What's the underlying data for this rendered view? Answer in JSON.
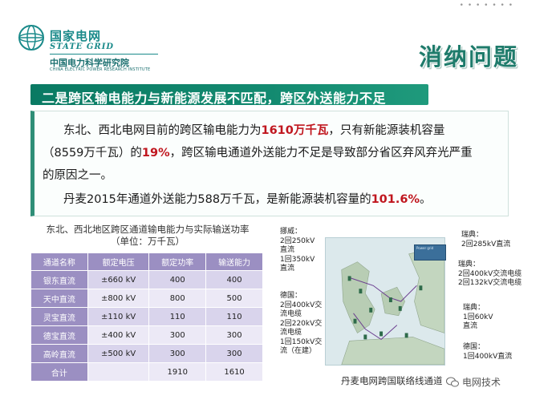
{
  "header": {
    "dots": "• • • • • • •",
    "logo_cn": "国家电网",
    "logo_en": "STATE GRID",
    "institute_cn": "中国电力科学研究院",
    "institute_en": "CHINA ELECTRIC POWER RESEARCH INSTITUTE",
    "section_title": "消纳问题",
    "accent_color": "#1e7b6b"
  },
  "banner": {
    "text": "二是跨区输电能力与新能源发展不匹配，跨区外送能力不足"
  },
  "body": {
    "line1_a": "东北、西北电网目前的跨区输电能力为",
    "line1_hl": "1610万千瓦",
    "line1_b": "，只有新能源装机容量",
    "line2_a": "（8559万千瓦）的",
    "line2_hl": "19%",
    "line2_b": "，跨区输电通道外送能力不足是导致部分省区弃风弃光严重",
    "line3": "的原因之一。",
    "line4_a": "丹麦2015年通道外送能力588万千瓦，是新能源装机容量的",
    "line4_hl": "101.6%",
    "line4_b": "。",
    "highlight_color": "#c0161e"
  },
  "table": {
    "title_line1": "东北、西北地区跨区通道输电能力与实际输送功率",
    "title_line2": "（单位：万千瓦）",
    "headers": [
      "通道名称",
      "额定电压",
      "额定功率",
      "输送能力"
    ],
    "rows": [
      [
        "银东直流",
        "±660 kV",
        "400",
        "400"
      ],
      [
        "天中直流",
        "±800 kV",
        "800",
        "500"
      ],
      [
        "灵宝直流",
        "±110 kV",
        "110",
        "110"
      ],
      [
        "德宝直流",
        "±400 kV",
        "300",
        "300"
      ],
      [
        "高岭直流",
        "±500 kV",
        "300",
        "300"
      ],
      [
        "合计",
        "",
        "1910",
        "1610"
      ]
    ]
  },
  "map": {
    "legend": "Power grid",
    "norway": [
      "挪威：",
      "2回250kV",
      "直流",
      "1回350kV",
      "直流"
    ],
    "sweden1": [
      "瑞典：",
      "2回285kV直流"
    ],
    "sweden2": [
      "瑞典：",
      "2回400kV交流电缆",
      "2回132kV交流电缆"
    ],
    "germany1": [
      "德国：",
      "2回400kV交",
      "流电缆",
      "2回220kV交",
      "流电缆",
      "1回150kV交",
      "流（在建）"
    ],
    "sweden3": [
      "瑞典：",
      "1回60kV",
      "直流"
    ],
    "germany2": [
      "德国：",
      "1回400kV直流"
    ],
    "caption": "丹麦电网跨国联络线通道",
    "watermark": "电网技术"
  }
}
